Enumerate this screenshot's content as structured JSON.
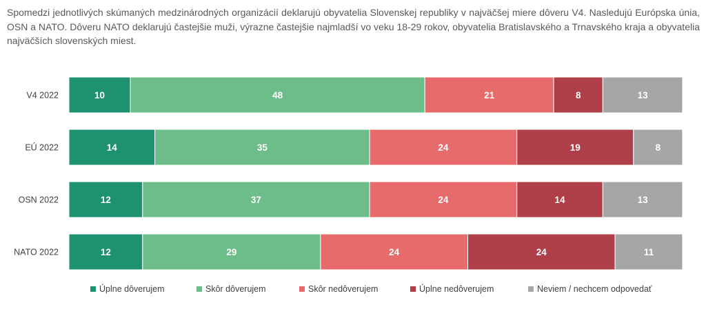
{
  "description": "Spomedzi jednotlivých skúmaných medzinárodných organizácií deklarujú obyvatelia Slovenskej republiky v najväčšej miere dôveru V4. Nasledujú Európska únia, OSN a NATO. Dôveru NATO deklarujú častejšie muži, výrazne častejšie najmladší vo veku 18-29 rokov, obyvatelia Bratislavského a Trnavského kraja a obyvatelia najväčších slovenských miest.",
  "chart_data": {
    "type": "bar",
    "orientation": "horizontal",
    "stacked": true,
    "percent_stacked": true,
    "categories": [
      "V4 2022",
      "EÚ 2022",
      "OSN 2022",
      "NATO 2022"
    ],
    "series": [
      {
        "name": "Úplne dôverujem",
        "color": "#1e9270",
        "values": [
          10,
          14,
          12,
          12
        ]
      },
      {
        "name": "Skôr dôverujem",
        "color": "#6dbd8a",
        "values": [
          48,
          35,
          37,
          29
        ]
      },
      {
        "name": "Skôr nedôverujem",
        "color": "#e86b6b",
        "values": [
          21,
          24,
          24,
          24
        ]
      },
      {
        "name": "Úplne nedôverujem",
        "color": "#ae3f48",
        "values": [
          8,
          19,
          14,
          24
        ]
      },
      {
        "name": "Neviem / nechcem odpovedať",
        "color": "#a6a6a6",
        "values": [
          13,
          8,
          13,
          11
        ]
      }
    ],
    "legend_position": "bottom",
    "grid": false
  }
}
